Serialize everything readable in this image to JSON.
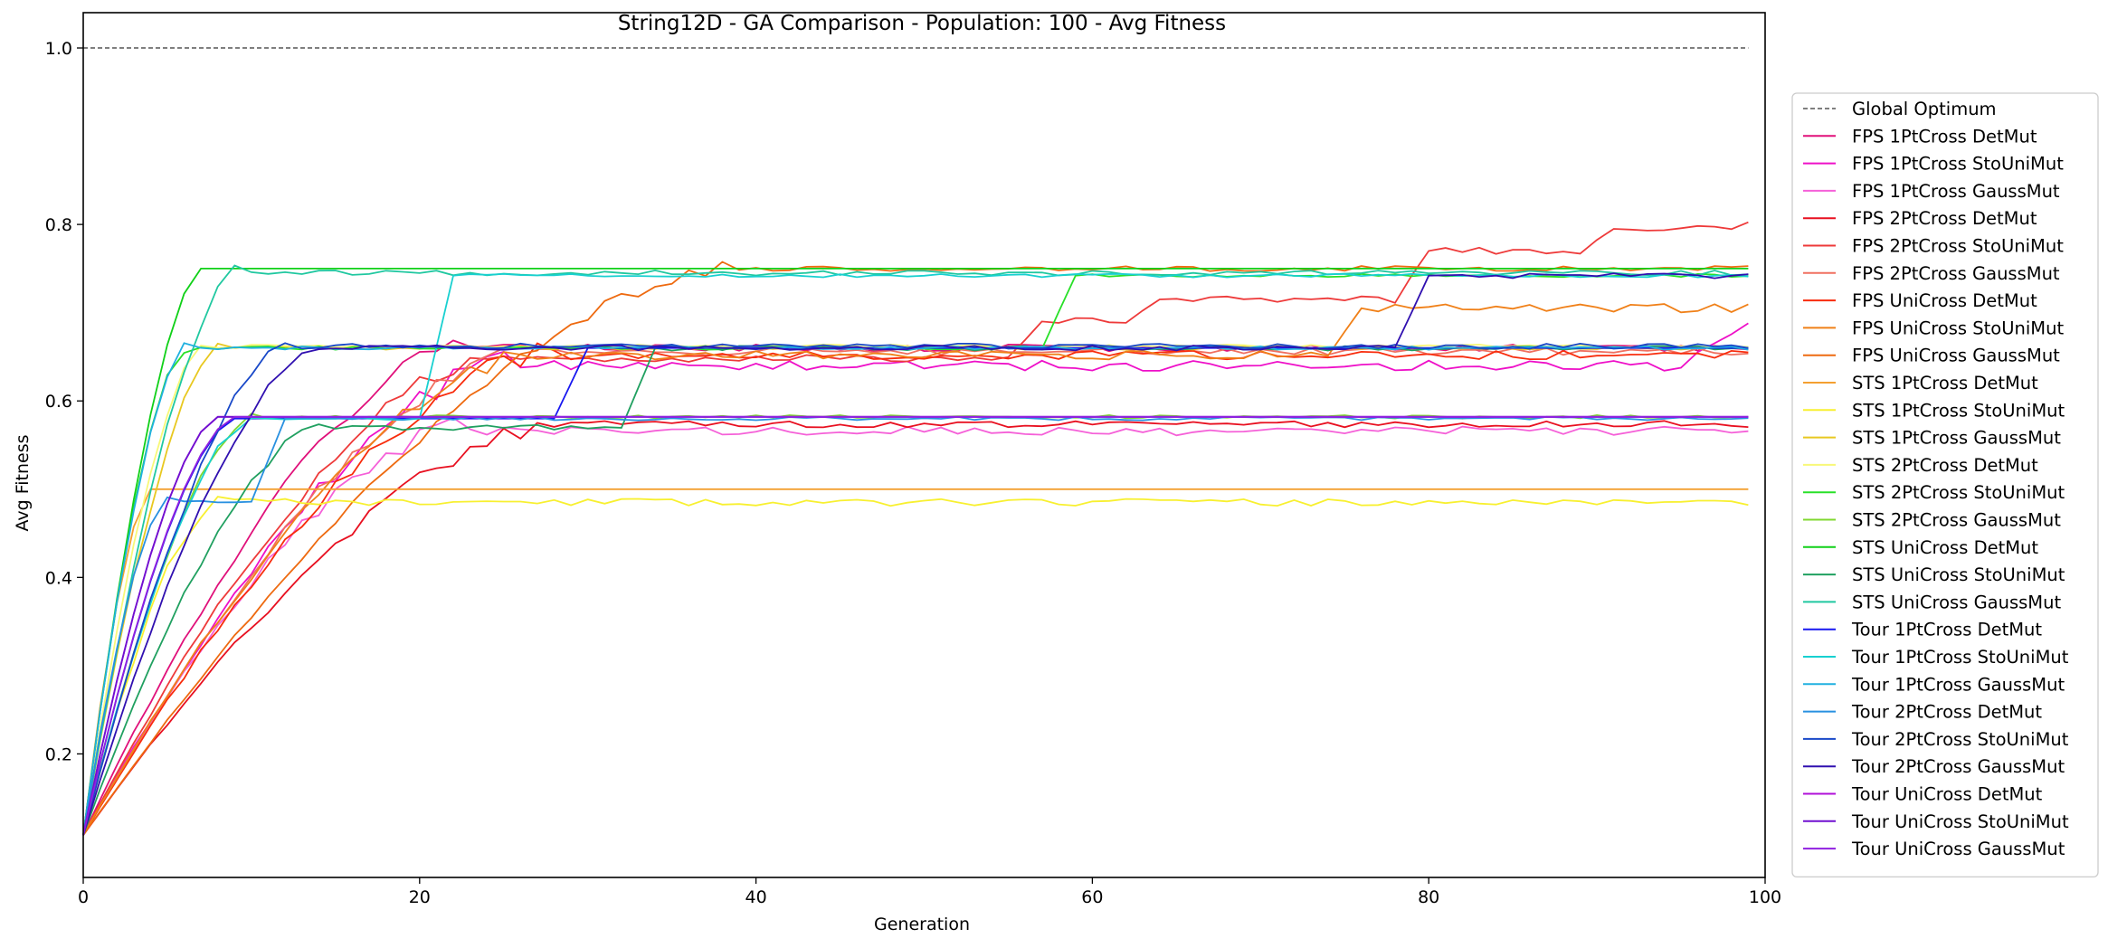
{
  "chart_data": {
    "type": "line",
    "title": "String12D - GA Comparison - Population: 100 - Avg Fitness",
    "xlabel": "Generation",
    "ylabel": "Avg Fitness",
    "xlim": [
      0,
      100
    ],
    "ylim": [
      0.06,
      1.04
    ],
    "xticks": [
      0,
      20,
      40,
      60,
      80,
      100
    ],
    "yticks": [
      0.2,
      0.4,
      0.6,
      0.8,
      1.0
    ],
    "grid": false,
    "legend_position": "right-outside",
    "reference_line": {
      "name": "Global Optimum",
      "y": 1.0,
      "color": "#333333",
      "style": "dashed"
    },
    "series": [
      {
        "name": "FPS 1PtCross DetMut",
        "color": "#e0107a",
        "start": 0.108,
        "plateau": 0.66,
        "rise": 22,
        "delay": 0,
        "noise": 0.004,
        "seed": 1
      },
      {
        "name": "FPS 1PtCross StoUniMut",
        "color": "#ee10c8",
        "start": 0.108,
        "plateau": 0.64,
        "rise": 25,
        "delay": 0,
        "noise": 0.006,
        "seed": 2,
        "end": 0.688,
        "end_from": 95
      },
      {
        "name": "FPS 1PtCross GaussMut",
        "color": "#f560d8",
        "start": 0.108,
        "plateau": 0.566,
        "rise": 22,
        "delay": 0,
        "noise": 0.005,
        "seed": 3
      },
      {
        "name": "FPS 2PtCross DetMut",
        "color": "#e81020",
        "start": 0.108,
        "plateau": 0.574,
        "rise": 28,
        "delay": 0,
        "noise": 0.004,
        "seed": 4
      },
      {
        "name": "FPS 2PtCross StoUniMut",
        "color": "#ee3a3a",
        "start": 0.108,
        "plateau": 0.648,
        "rise": 24,
        "delay": 0,
        "noise": 0.004,
        "seed": 5,
        "jumps": [
          [
            56,
            0.69
          ],
          [
            63,
            0.715
          ],
          [
            79,
            0.77
          ],
          [
            90,
            0.795
          ],
          [
            99,
            0.81
          ]
        ]
      },
      {
        "name": "FPS 2PtCross GaussMut",
        "color": "#f07060",
        "start": 0.108,
        "plateau": 0.656,
        "rise": 26,
        "delay": 0,
        "noise": 0.004,
        "seed": 6
      },
      {
        "name": "FPS UniCross DetMut",
        "color": "#f82c0c",
        "start": 0.108,
        "plateau": 0.652,
        "rise": 27,
        "delay": 0,
        "noise": 0.005,
        "seed": 7
      },
      {
        "name": "FPS UniCross StoUniMut",
        "color": "#f08018",
        "start": 0.108,
        "plateau": 0.652,
        "rise": 26,
        "delay": 0,
        "noise": 0.005,
        "seed": 8,
        "jumps": [
          [
            75,
            0.705
          ],
          [
            99,
            0.714
          ]
        ]
      },
      {
        "name": "FPS UniCross GaussMut",
        "color": "#ee6a10",
        "start": 0.108,
        "plateau": 0.75,
        "rise": 38,
        "delay": 0,
        "noise": 0.003,
        "seed": 9
      },
      {
        "name": "STS 1PtCross DetMut",
        "color": "#f4a030",
        "start": 0.108,
        "plateau": 0.5,
        "rise": 4,
        "delay": 0,
        "noise": 0.0,
        "seed": 10
      },
      {
        "name": "STS 1PtCross StoUniMut",
        "color": "#f8f030",
        "start": 0.108,
        "plateau": 0.485,
        "rise": 8,
        "delay": 0,
        "noise": 0.004,
        "seed": 11
      },
      {
        "name": "STS 1PtCross GaussMut",
        "color": "#e8c820",
        "start": 0.108,
        "plateau": 0.66,
        "rise": 8,
        "delay": 0,
        "noise": 0.002,
        "seed": 12
      },
      {
        "name": "STS 2PtCross DetMut",
        "color": "#f8f878",
        "start": 0.108,
        "plateau": 0.662,
        "rise": 7,
        "delay": 0,
        "noise": 0.002,
        "seed": 13
      },
      {
        "name": "STS 2PtCross StoUniMut",
        "color": "#28e028",
        "start": 0.108,
        "plateau": 0.66,
        "rise": 6,
        "delay": 0,
        "noise": 0.002,
        "seed": 14,
        "jumps": [
          [
            58,
            0.742
          ]
        ]
      },
      {
        "name": "STS 2PtCross GaussMut",
        "color": "#80d830",
        "start": 0.108,
        "plateau": 0.582,
        "rise": 10,
        "delay": 0,
        "noise": 0.002,
        "seed": 15
      },
      {
        "name": "STS UniCross DetMut",
        "color": "#10d018",
        "start": 0.108,
        "plateau": 0.75,
        "rise": 7,
        "delay": 0,
        "noise": 0.0,
        "seed": 16
      },
      {
        "name": "STS UniCross StoUniMut",
        "color": "#20a060",
        "start": 0.108,
        "plateau": 0.57,
        "rise": 14,
        "delay": 0,
        "noise": 0.003,
        "seed": 17,
        "jumps": [
          [
            33,
            0.66
          ]
        ]
      },
      {
        "name": "STS UniCross GaussMut",
        "color": "#20c8a0",
        "start": 0.108,
        "plateau": 0.745,
        "rise": 9,
        "delay": 0,
        "noise": 0.003,
        "seed": 18
      },
      {
        "name": "Tour 1PtCross DetMut",
        "color": "#1818f0",
        "start": 0.108,
        "plateau": 0.58,
        "rise": 9,
        "delay": 0,
        "noise": 0.0,
        "seed": 19,
        "jumps": [
          [
            29,
            0.66
          ]
        ]
      },
      {
        "name": "Tour 1PtCross StoUniMut",
        "color": "#18d0d0",
        "start": 0.108,
        "plateau": 0.58,
        "rise": 10,
        "delay": 0,
        "noise": 0.002,
        "seed": 20,
        "jumps": [
          [
            21,
            0.742
          ]
        ]
      },
      {
        "name": "Tour 1PtCross GaussMut",
        "color": "#20b0e0",
        "start": 0.108,
        "plateau": 0.66,
        "rise": 6,
        "delay": 0,
        "noise": 0.002,
        "seed": 21
      },
      {
        "name": "Tour 2PtCross DetMut",
        "color": "#2890e0",
        "start": 0.108,
        "plateau": 0.486,
        "rise": 5,
        "delay": 0,
        "noise": 0.002,
        "seed": 22,
        "jumps": [
          [
            11,
            0.58
          ]
        ]
      },
      {
        "name": "Tour 2PtCross StoUniMut",
        "color": "#1848c8",
        "start": 0.108,
        "plateau": 0.662,
        "rise": 12,
        "delay": 0,
        "noise": 0.003,
        "seed": 23
      },
      {
        "name": "Tour 2PtCross GaussMut",
        "color": "#3010b0",
        "start": 0.108,
        "plateau": 0.66,
        "rise": 14,
        "delay": 0,
        "noise": 0.003,
        "seed": 24,
        "jumps": [
          [
            79,
            0.742
          ]
        ]
      },
      {
        "name": "Tour UniCross DetMut",
        "color": "#b010d8",
        "start": 0.108,
        "plateau": 0.582,
        "rise": 8,
        "delay": 0,
        "noise": 0.0,
        "seed": 25
      },
      {
        "name": "Tour UniCross StoUniMut",
        "color": "#7010d0",
        "start": 0.108,
        "plateau": 0.582,
        "rise": 8,
        "delay": 0,
        "noise": 0.0,
        "seed": 26
      },
      {
        "name": "Tour UniCross GaussMut",
        "color": "#9020e0",
        "start": 0.108,
        "plateau": 0.582,
        "rise": 9,
        "delay": 0,
        "noise": 0.0,
        "seed": 27
      }
    ]
  }
}
